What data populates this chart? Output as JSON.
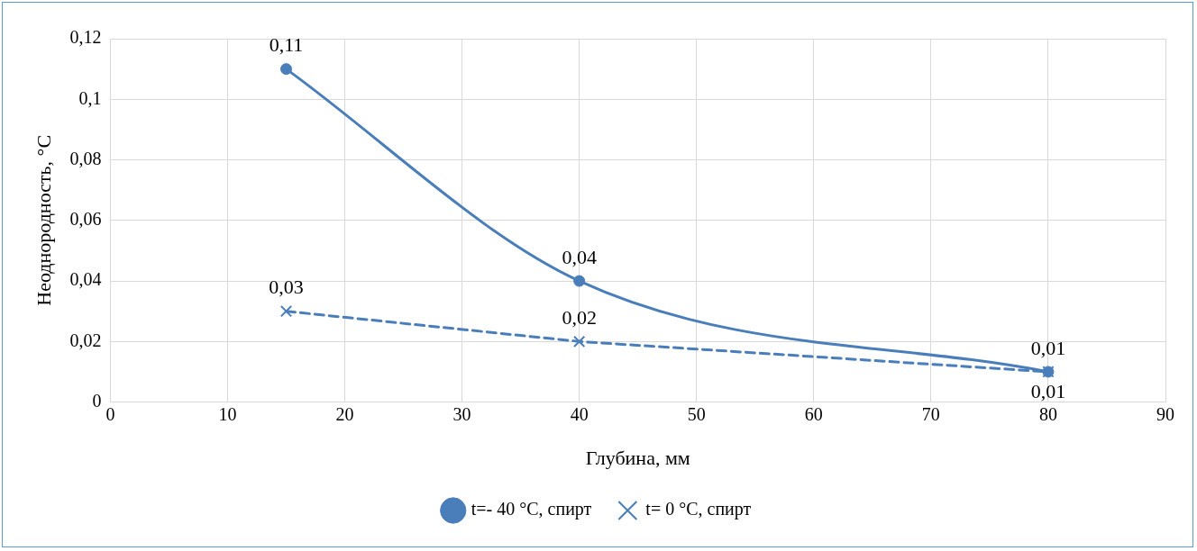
{
  "chart_data": {
    "type": "line",
    "xlabel": "Глубина, мм",
    "ylabel": "Неоднородность, °C",
    "xlim": [
      0,
      90
    ],
    "xticks": [
      0,
      10,
      20,
      30,
      40,
      50,
      60,
      70,
      80,
      90
    ],
    "ylim": [
      0,
      0.12
    ],
    "yticks": [
      {
        "value": 0,
        "label": "0"
      },
      {
        "value": 0.02,
        "label": "0,02"
      },
      {
        "value": 0.04,
        "label": "0,04"
      },
      {
        "value": 0.06,
        "label": "0,06"
      },
      {
        "value": 0.08,
        "label": "0,08"
      },
      {
        "value": 0.1,
        "label": "0,1"
      },
      {
        "value": 0.12,
        "label": "0,12"
      }
    ],
    "grid": true,
    "legend": "bottom",
    "series": [
      {
        "name": "t=- 40 °C, спирт",
        "color": "#4a7ebb",
        "x": [
          15,
          40,
          80
        ],
        "values": [
          0.11,
          0.04,
          0.01
        ],
        "value_labels": [
          "0,11",
          "0,04",
          "0,01"
        ],
        "marker": "circle",
        "line_style": "solid"
      },
      {
        "name": "t= 0 °C, спирт",
        "color": "#4a7ebb",
        "x": [
          15,
          40,
          80
        ],
        "values": [
          0.03,
          0.02,
          0.01
        ],
        "value_labels": [
          "0,03",
          "0,02",
          "0,01"
        ],
        "marker": "cross",
        "line_style": "dashed"
      }
    ]
  }
}
